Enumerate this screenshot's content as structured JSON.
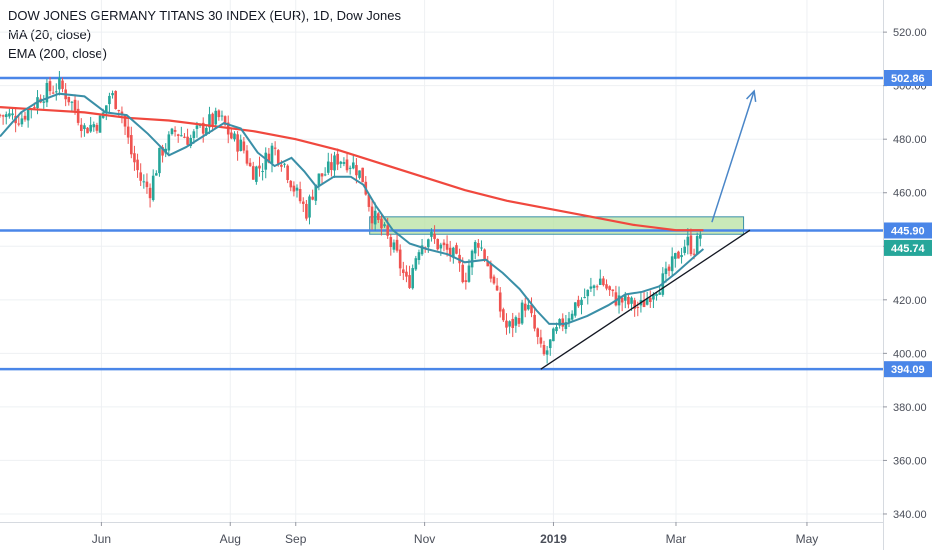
{
  "chart_data": {
    "type": "candlestick",
    "title": "DOW JONES GERMANY TITANS 30 INDEX (EUR), 1D, Dow Jones",
    "indicators": [
      {
        "label": "MA (20, close)",
        "color": "#3a8fa7"
      },
      {
        "label": "EMA (200, close)",
        "color": "#f0483e"
      }
    ],
    "y_axis": {
      "min": 337,
      "max": 532,
      "ticks": [
        340.0,
        360.0,
        380.0,
        400.0,
        420.0,
        440.0,
        460.0,
        480.0,
        500.0,
        520.0
      ],
      "tick_labels": [
        "340.00",
        "360.00",
        "380.00",
        "400.00",
        "420.00",
        "440.00",
        "460.00",
        "480.00",
        "500.00",
        "520.00"
      ]
    },
    "x_axis": {
      "labels": [
        "Jun",
        "Aug",
        "Sep",
        "Nov",
        "2019",
        "Mar",
        "May"
      ],
      "label_days": [
        48,
        109,
        140,
        201,
        262,
        320,
        382
      ],
      "grid": true
    },
    "price_lines": [
      {
        "value": 502.86,
        "label": "502.86",
        "color": "#4a86e8",
        "style": "solid"
      },
      {
        "value": 445.9,
        "label": "445.90",
        "color": "#4a86e8",
        "style": "solid"
      },
      {
        "value": 394.09,
        "label": "394.09",
        "color": "#4a86e8",
        "style": "solid"
      }
    ],
    "last_price": {
      "value": 445.74,
      "label": "445.74",
      "color": "#26a69a"
    },
    "zone": {
      "from_day": 175,
      "to_day": 352,
      "low": 444.5,
      "high": 451.0,
      "color": "#b7e1a1"
    },
    "trendline": [
      {
        "day": 256,
        "price": 394.09
      },
      {
        "day": 355,
        "price": 446.0
      }
    ],
    "arrow": [
      {
        "day": 337,
        "price": 449
      },
      {
        "day": 357,
        "price": 498
      }
    ],
    "price_path": [
      [
        0,
        489
      ],
      [
        10,
        488
      ],
      [
        20,
        497
      ],
      [
        28,
        500
      ],
      [
        33,
        495
      ],
      [
        40,
        484
      ],
      [
        48,
        487
      ],
      [
        52,
        497
      ],
      [
        57,
        492
      ],
      [
        62,
        475
      ],
      [
        67,
        464
      ],
      [
        71,
        461
      ],
      [
        76,
        475
      ],
      [
        83,
        483
      ],
      [
        90,
        480
      ],
      [
        98,
        486
      ],
      [
        104,
        488
      ],
      [
        110,
        480
      ],
      [
        115,
        477
      ],
      [
        119,
        468
      ],
      [
        124,
        470
      ],
      [
        129,
        477
      ],
      [
        134,
        472
      ],
      [
        140,
        460
      ],
      [
        145,
        453
      ],
      [
        150,
        465
      ],
      [
        155,
        468
      ],
      [
        160,
        473
      ],
      [
        164,
        472
      ],
      [
        168,
        470
      ],
      [
        172,
        465
      ],
      [
        176,
        452
      ],
      [
        182,
        445
      ],
      [
        188,
        436
      ],
      [
        193,
        425
      ],
      [
        198,
        440
      ],
      [
        203,
        444
      ],
      [
        208,
        440
      ],
      [
        214,
        437
      ],
      [
        220,
        428
      ],
      [
        226,
        443
      ],
      [
        232,
        431
      ],
      [
        236,
        418
      ],
      [
        240,
        409
      ],
      [
        244,
        412
      ],
      [
        249,
        419
      ],
      [
        253,
        409
      ],
      [
        257,
        398
      ],
      [
        262,
        406
      ],
      [
        266,
        411
      ],
      [
        272,
        418
      ],
      [
        278,
        422
      ],
      [
        284,
        428
      ],
      [
        290,
        421
      ],
      [
        296,
        419
      ],
      [
        303,
        417
      ],
      [
        309,
        424
      ],
      [
        315,
        428
      ],
      [
        321,
        437
      ],
      [
        325,
        442
      ],
      [
        328,
        439
      ],
      [
        330,
        441
      ],
      [
        332,
        446
      ]
    ],
    "ma20": [
      [
        0,
        481
      ],
      [
        10,
        490
      ],
      [
        18,
        494
      ],
      [
        28,
        497
      ],
      [
        40,
        496
      ],
      [
        50,
        490
      ],
      [
        60,
        489
      ],
      [
        70,
        482
      ],
      [
        80,
        474
      ],
      [
        88,
        477
      ],
      [
        96,
        481
      ],
      [
        106,
        486
      ],
      [
        114,
        484
      ],
      [
        122,
        475
      ],
      [
        130,
        470
      ],
      [
        138,
        473
      ],
      [
        144,
        468
      ],
      [
        150,
        462
      ],
      [
        158,
        466
      ],
      [
        166,
        466
      ],
      [
        172,
        463
      ],
      [
        178,
        455
      ],
      [
        186,
        446
      ],
      [
        194,
        441
      ],
      [
        202,
        439
      ],
      [
        212,
        437
      ],
      [
        220,
        434
      ],
      [
        230,
        435
      ],
      [
        238,
        430
      ],
      [
        246,
        424
      ],
      [
        254,
        416
      ],
      [
        260,
        411
      ],
      [
        268,
        411
      ],
      [
        278,
        414
      ],
      [
        288,
        418
      ],
      [
        296,
        422
      ],
      [
        304,
        423
      ],
      [
        312,
        425
      ],
      [
        320,
        430
      ],
      [
        330,
        437
      ],
      [
        333,
        439
      ]
    ],
    "ema200": [
      [
        0,
        492
      ],
      [
        20,
        491
      ],
      [
        40,
        490
      ],
      [
        60,
        488
      ],
      [
        80,
        487
      ],
      [
        100,
        485
      ],
      [
        120,
        483
      ],
      [
        140,
        480
      ],
      [
        160,
        476
      ],
      [
        180,
        471
      ],
      [
        200,
        466
      ],
      [
        220,
        461
      ],
      [
        240,
        457
      ],
      [
        260,
        454
      ],
      [
        280,
        451
      ],
      [
        300,
        448
      ],
      [
        320,
        446
      ],
      [
        333,
        446
      ]
    ]
  }
}
